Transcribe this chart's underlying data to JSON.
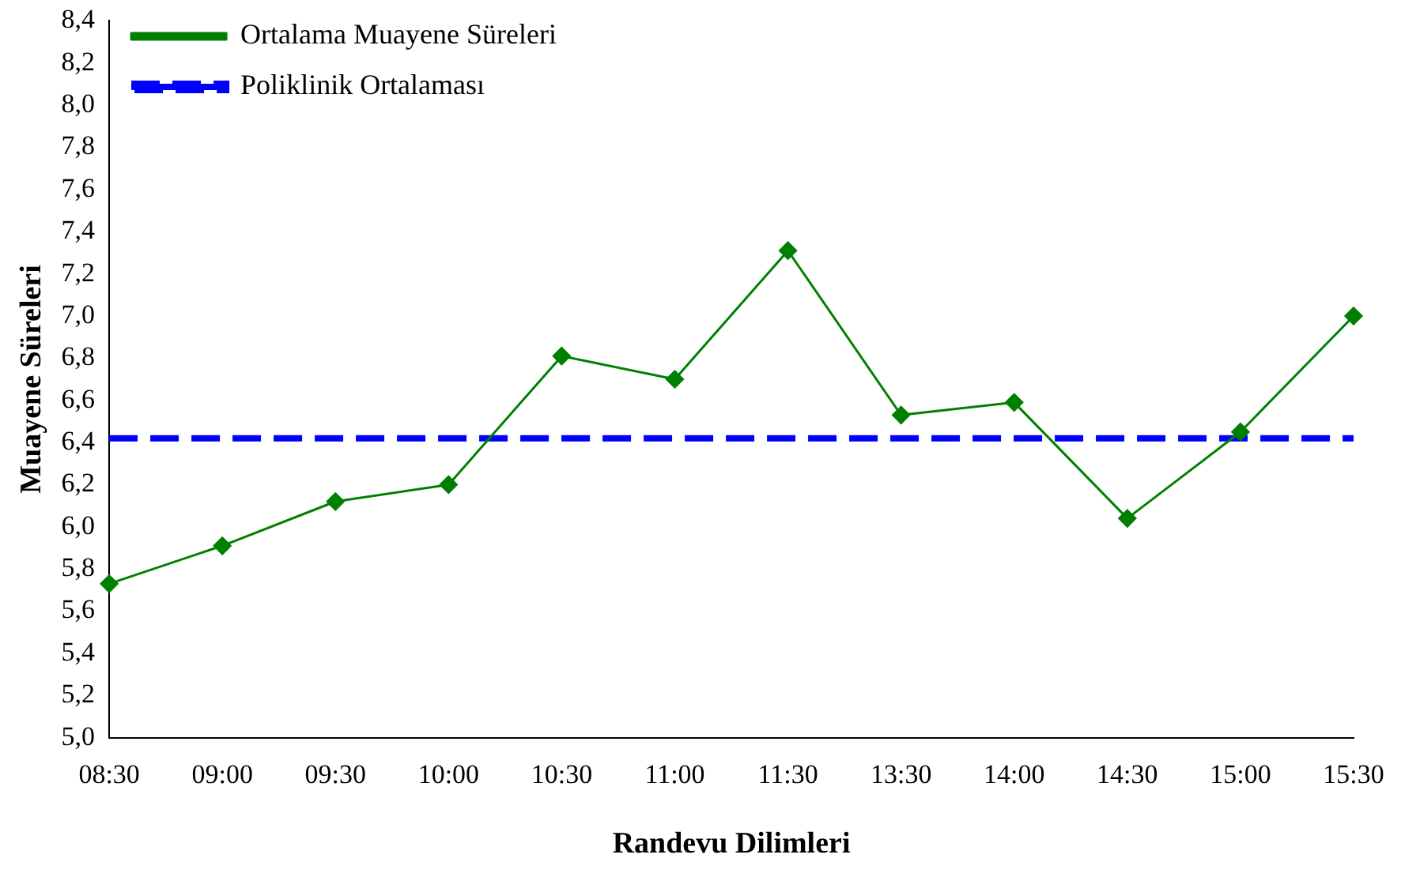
{
  "chart_data": {
    "type": "line",
    "xlabel": "Randevu Dilimleri",
    "ylabel": "Muayene Süreleri",
    "categories": [
      "08:30",
      "09:00",
      "09:30",
      "10:00",
      "10:30",
      "11:00",
      "11:30",
      "13:30",
      "14:00",
      "14:30",
      "15:00",
      "15:30"
    ],
    "series": [
      {
        "name": "Ortalama Muayene Süreleri",
        "color": "#008000",
        "values": [
          5.73,
          5.91,
          6.12,
          6.2,
          6.81,
          6.7,
          7.31,
          6.53,
          6.59,
          6.04,
          6.45,
          7.0
        ]
      }
    ],
    "ref_lines": [
      {
        "axis": "y",
        "value": 6.42,
        "label": "Poliklinik Ortalaması",
        "color": "#0000ff",
        "line_style": "dashed"
      }
    ],
    "ylim": [
      5.0,
      8.4
    ],
    "yticks": [
      {
        "value": 5.0,
        "label": "5,0"
      },
      {
        "value": 5.2,
        "label": "5,2"
      },
      {
        "value": 5.4,
        "label": "5,4"
      },
      {
        "value": 5.6,
        "label": "5,6"
      },
      {
        "value": 5.8,
        "label": "5,8"
      },
      {
        "value": 6.0,
        "label": "6,0"
      },
      {
        "value": 6.2,
        "label": "6,2"
      },
      {
        "value": 6.4,
        "label": "6,4"
      },
      {
        "value": 6.6,
        "label": "6,6"
      },
      {
        "value": 6.8,
        "label": "6,8"
      },
      {
        "value": 7.0,
        "label": "7,0"
      },
      {
        "value": 7.2,
        "label": "7,2"
      },
      {
        "value": 7.4,
        "label": "7,4"
      },
      {
        "value": 7.6,
        "label": "7,6"
      },
      {
        "value": 7.8,
        "label": "7,8"
      },
      {
        "value": 8.0,
        "label": "8,0"
      },
      {
        "value": 8.2,
        "label": "8,2"
      },
      {
        "value": 8.4,
        "label": "8,4"
      }
    ],
    "grid": false,
    "legend": "top left",
    "marker": "diamond",
    "line_style": "solid"
  }
}
